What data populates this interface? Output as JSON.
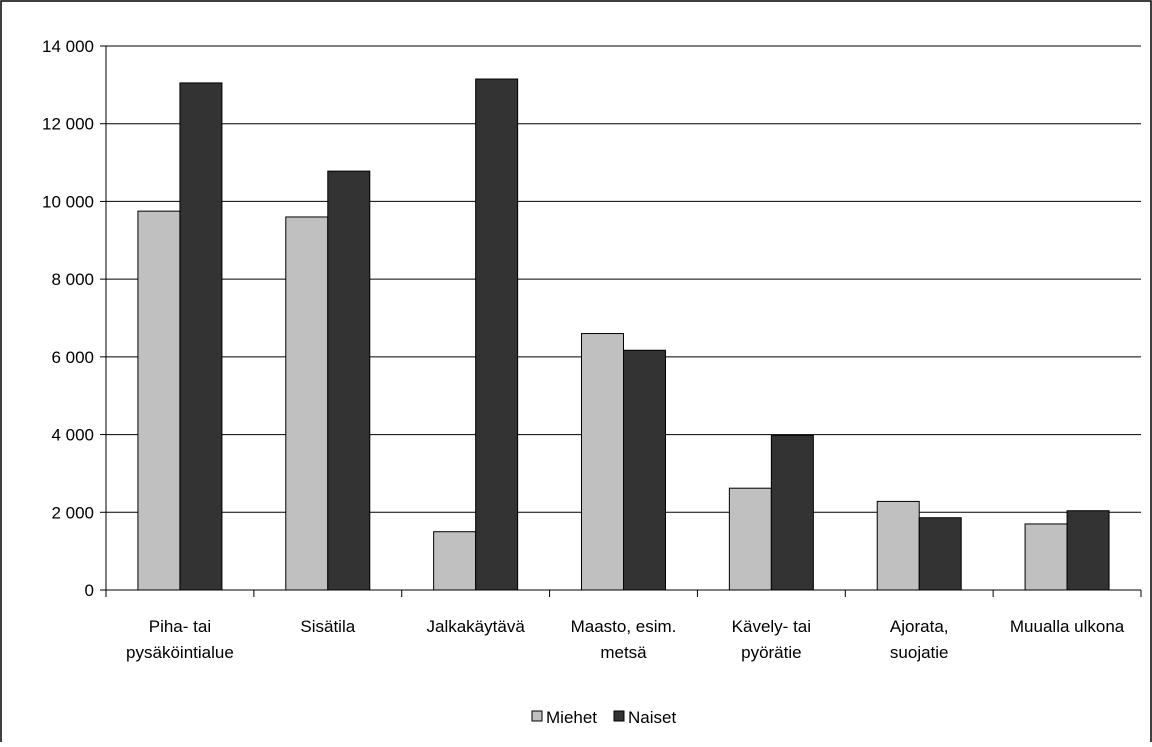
{
  "chart_data": {
    "type": "bar",
    "title": "",
    "xlabel": "",
    "ylabel": "",
    "ylim": [
      0,
      14000
    ],
    "yticks": [
      0,
      2000,
      4000,
      6000,
      8000,
      10000,
      12000,
      14000
    ],
    "ytick_labels": [
      "0",
      "2 000",
      "4 000",
      "6 000",
      "8 000",
      "10 000",
      "12 000",
      "14 000"
    ],
    "grid": true,
    "legend_position": "bottom",
    "categories": [
      [
        "Piha- tai",
        "pysäköintialue"
      ],
      [
        "Sisätila"
      ],
      [
        "Jalkakäytävä"
      ],
      [
        "Maasto, esim.",
        "metsä"
      ],
      [
        "Kävely- tai",
        "pyörätie"
      ],
      [
        "Ajorata,",
        "suojatie"
      ],
      [
        "Muualla ulkona"
      ]
    ],
    "series": [
      {
        "name": "Miehet",
        "color": "#c0c0c0",
        "values": [
          9750,
          9600,
          1500,
          6600,
          2620,
          2280,
          1700
        ]
      },
      {
        "name": "Naiset",
        "color": "#333333",
        "values": [
          13050,
          10780,
          13150,
          6170,
          3980,
          1860,
          2040
        ]
      }
    ]
  }
}
